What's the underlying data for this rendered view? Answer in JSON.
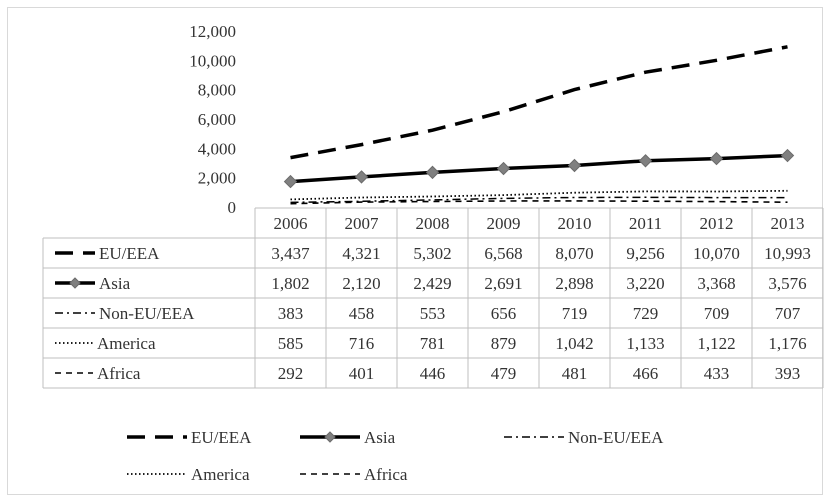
{
  "chart_data": {
    "type": "line",
    "title": "",
    "xlabel": "",
    "ylabel": "",
    "ylim": [
      0,
      12000
    ],
    "y_ticks": [
      "0",
      "2,000",
      "4,000",
      "6,000",
      "8,000",
      "10,000",
      "12,000"
    ],
    "categories": [
      "2006",
      "2007",
      "2008",
      "2009",
      "2010",
      "2011",
      "2012",
      "2013"
    ],
    "grid": false,
    "legend_position": "bottom",
    "has_data_table": true,
    "series": [
      {
        "name": "EU/EEA",
        "values": [
          3437,
          4321,
          5302,
          6568,
          8070,
          9256,
          10070,
          10993
        ],
        "labels": [
          "3,437",
          "4,321",
          "5,302",
          "6,568",
          "8,070",
          "9,256",
          "10,070",
          "10,993"
        ],
        "style": "long-dash",
        "color": "#000000"
      },
      {
        "name": "Asia",
        "values": [
          1802,
          2120,
          2429,
          2691,
          2898,
          3220,
          3368,
          3576
        ],
        "labels": [
          "1,802",
          "2,120",
          "2,429",
          "2,691",
          "2,898",
          "3,220",
          "3,368",
          "3,576"
        ],
        "style": "solid-diamond",
        "color": "#000000",
        "marker_color": "#808080"
      },
      {
        "name": "Non-EU/EEA",
        "values": [
          383,
          458,
          553,
          656,
          719,
          729,
          709,
          707
        ],
        "labels": [
          "383",
          "458",
          "553",
          "656",
          "719",
          "729",
          "709",
          "707"
        ],
        "style": "dash-dot",
        "color": "#000000"
      },
      {
        "name": "America",
        "values": [
          585,
          716,
          781,
          879,
          1042,
          1133,
          1122,
          1176
        ],
        "labels": [
          "585",
          "716",
          "781",
          "879",
          "1,042",
          "1,133",
          "1,122",
          "1,176"
        ],
        "style": "dotted",
        "color": "#000000"
      },
      {
        "name": "Africa",
        "values": [
          292,
          401,
          446,
          479,
          481,
          466,
          433,
          393
        ],
        "labels": [
          "292",
          "401",
          "446",
          "479",
          "481",
          "466",
          "433",
          "393"
        ],
        "style": "short-dash",
        "color": "#000000"
      }
    ]
  }
}
